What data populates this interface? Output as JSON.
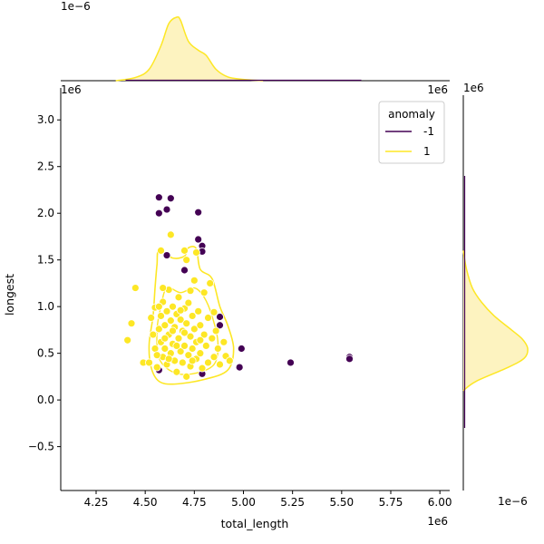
{
  "chart_data": {
    "type": "scatter",
    "xlabel": "total_length",
    "ylabel": "longest",
    "x_offset_label": "1e6",
    "y_offset_label": "1e6",
    "top_marginal_offset_label": "1e−6",
    "right_marginal_offset_label": "1e−6",
    "top_marginal_corner_label": "1e6",
    "right_marginal_corner_label": "1e6",
    "xlim": [
      4.07,
      6.05
    ],
    "ylim": [
      -0.97,
      3.42
    ],
    "x_ticks": [
      4.25,
      4.5,
      4.75,
      5.0,
      5.25,
      5.5,
      5.75,
      6.0
    ],
    "x_tick_labels": [
      "4.25",
      "4.50",
      "4.75",
      "5.00",
      "5.25",
      "5.50",
      "5.75",
      "6.00"
    ],
    "y_ticks": [
      -0.5,
      0.0,
      0.5,
      1.0,
      1.5,
      2.0,
      2.5,
      3.0
    ],
    "y_tick_labels": [
      "−0.5",
      "0.0",
      "0.5",
      "1.0",
      "1.5",
      "2.0",
      "2.5",
      "3.0"
    ],
    "grid": false,
    "legend": {
      "title": "anomaly",
      "placement": "top-right",
      "entries": [
        {
          "label": "-1",
          "color": "#440154"
        },
        {
          "label": "1",
          "color": "#fde725"
        }
      ]
    },
    "colors": {
      "anomaly_neg": "#440154",
      "normal": "#fde725",
      "kde_fill": "#fdf3c0"
    },
    "series": [
      {
        "name": "-1",
        "points": [
          [
            4.57,
            2.17
          ],
          [
            4.63,
            2.16
          ],
          [
            4.57,
            2.0
          ],
          [
            4.61,
            2.04
          ],
          [
            4.77,
            2.01
          ],
          [
            4.77,
            1.72
          ],
          [
            4.79,
            1.65
          ],
          [
            4.79,
            1.59
          ],
          [
            4.61,
            1.55
          ],
          [
            4.7,
            1.39
          ],
          [
            4.88,
            0.89
          ],
          [
            4.88,
            0.8
          ],
          [
            4.99,
            0.55
          ],
          [
            4.98,
            0.35
          ],
          [
            5.24,
            0.4
          ],
          [
            5.54,
            0.46
          ],
          [
            5.54,
            0.44
          ],
          [
            4.79,
            0.28
          ],
          [
            4.57,
            0.32
          ]
        ]
      },
      {
        "name": "1",
        "points": [
          [
            4.41,
            0.64
          ],
          [
            4.43,
            0.82
          ],
          [
            4.45,
            1.2
          ],
          [
            4.49,
            0.4
          ],
          [
            4.52,
            0.4
          ],
          [
            4.53,
            0.88
          ],
          [
            4.54,
            0.7
          ],
          [
            4.55,
            0.99
          ],
          [
            4.55,
            0.55
          ],
          [
            4.56,
            0.35
          ],
          [
            4.57,
            0.76
          ],
          [
            4.58,
            0.62
          ],
          [
            4.58,
            0.9
          ],
          [
            4.59,
            0.46
          ],
          [
            4.59,
            1.05
          ],
          [
            4.6,
            0.8
          ],
          [
            4.6,
            0.55
          ],
          [
            4.61,
            0.95
          ],
          [
            4.61,
            0.38
          ],
          [
            4.62,
            0.7
          ],
          [
            4.62,
            1.18
          ],
          [
            4.63,
            0.5
          ],
          [
            4.63,
            0.85
          ],
          [
            4.64,
            1.0
          ],
          [
            4.64,
            0.6
          ],
          [
            4.65,
            0.42
          ],
          [
            4.65,
            0.78
          ],
          [
            4.66,
            0.92
          ],
          [
            4.66,
            0.3
          ],
          [
            4.67,
            0.66
          ],
          [
            4.67,
            1.1
          ],
          [
            4.68,
            0.52
          ],
          [
            4.68,
            0.86
          ],
          [
            4.69,
            0.74
          ],
          [
            4.69,
            0.4
          ],
          [
            4.7,
            0.98
          ],
          [
            4.7,
            0.58
          ],
          [
            4.71,
            0.25
          ],
          [
            4.71,
            0.82
          ],
          [
            4.72,
            0.48
          ],
          [
            4.72,
            1.04
          ],
          [
            4.73,
            0.68
          ],
          [
            4.73,
            0.36
          ],
          [
            4.74,
            0.9
          ],
          [
            4.74,
            0.55
          ],
          [
            4.75,
            0.76
          ],
          [
            4.75,
            1.28
          ],
          [
            4.76,
            0.44
          ],
          [
            4.76,
            0.62
          ],
          [
            4.77,
            0.95
          ],
          [
            4.78,
            0.5
          ],
          [
            4.78,
            0.8
          ],
          [
            4.79,
            0.34
          ],
          [
            4.8,
            0.7
          ],
          [
            4.8,
            1.15
          ],
          [
            4.81,
            0.58
          ],
          [
            4.82,
            0.88
          ],
          [
            4.82,
            0.4
          ],
          [
            4.84,
            0.66
          ],
          [
            4.85,
            0.94
          ],
          [
            4.85,
            0.46
          ],
          [
            4.86,
            0.74
          ],
          [
            4.87,
            0.55
          ],
          [
            4.88,
            0.38
          ],
          [
            4.9,
            0.62
          ],
          [
            4.91,
            0.47
          ],
          [
            4.93,
            0.42
          ],
          [
            4.6,
            0.66
          ],
          [
            4.62,
            0.44
          ],
          [
            4.66,
            0.58
          ],
          [
            4.7,
            0.72
          ],
          [
            4.74,
            0.42
          ],
          [
            4.78,
            0.64
          ],
          [
            4.68,
            0.96
          ],
          [
            4.64,
            0.74
          ],
          [
            4.58,
            1.6
          ],
          [
            4.7,
            1.6
          ],
          [
            4.76,
            1.58
          ],
          [
            4.63,
            1.77
          ],
          [
            4.71,
            1.5
          ],
          [
            4.59,
            1.2
          ],
          [
            4.83,
            1.25
          ],
          [
            4.56,
            0.48
          ],
          [
            4.57,
            1.0
          ],
          [
            4.73,
            1.17
          ]
        ]
      }
    ],
    "contour_outline": [
      [
        4.57,
        1.6
      ],
      [
        4.64,
        1.52
      ],
      [
        4.7,
        1.54
      ],
      [
        4.72,
        1.63
      ],
      [
        4.76,
        1.62
      ],
      [
        4.78,
        1.4
      ],
      [
        4.84,
        1.3
      ],
      [
        4.88,
        1.0
      ],
      [
        4.92,
        0.8
      ],
      [
        4.95,
        0.55
      ],
      [
        4.92,
        0.32
      ],
      [
        4.8,
        0.22
      ],
      [
        4.65,
        0.17
      ],
      [
        4.57,
        0.2
      ],
      [
        4.53,
        0.35
      ],
      [
        4.52,
        0.6
      ],
      [
        4.54,
        0.9
      ],
      [
        4.55,
        1.2
      ],
      [
        4.56,
        1.45
      ]
    ],
    "contour_inner": [
      [
        4.61,
        1.2
      ],
      [
        4.68,
        1.15
      ],
      [
        4.75,
        1.2
      ],
      [
        4.8,
        1.1
      ],
      [
        4.84,
        0.9
      ],
      [
        4.87,
        0.62
      ],
      [
        4.85,
        0.38
      ],
      [
        4.74,
        0.28
      ],
      [
        4.64,
        0.3
      ],
      [
        4.57,
        0.45
      ],
      [
        4.56,
        0.75
      ],
      [
        4.58,
        1.0
      ]
    ],
    "top_marginal": {
      "x": [
        4.35,
        4.45,
        4.52,
        4.58,
        4.62,
        4.66,
        4.68,
        4.72,
        4.77,
        4.81,
        4.86,
        4.92,
        5.0,
        5.1
      ],
      "density": [
        0.0,
        0.05,
        0.18,
        0.55,
        0.9,
        1.0,
        0.95,
        0.62,
        0.48,
        0.4,
        0.18,
        0.06,
        0.02,
        0.0
      ]
    },
    "right_marginal": {
      "y": [
        0.1,
        0.2,
        0.35,
        0.45,
        0.55,
        0.65,
        0.75,
        0.9,
        1.05,
        1.2,
        1.4,
        1.6
      ],
      "density": [
        0.0,
        0.2,
        0.7,
        0.95,
        1.0,
        0.92,
        0.75,
        0.48,
        0.28,
        0.14,
        0.05,
        0.0
      ]
    }
  }
}
